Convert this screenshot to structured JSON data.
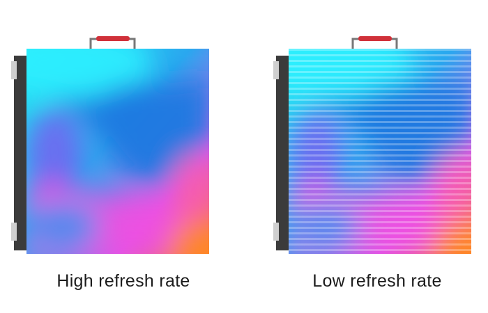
{
  "panels": [
    {
      "label": "High refresh rate"
    },
    {
      "label": "Low refresh rate"
    }
  ]
}
